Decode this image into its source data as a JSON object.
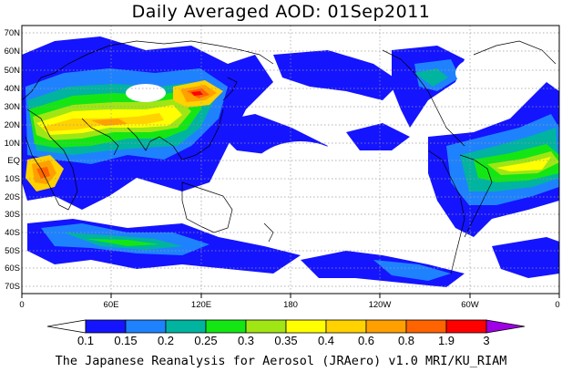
{
  "title": "Daily Averaged AOD: 01Sep2011",
  "credit": "The Japanese Reanalysis for Aerosol (JRAero) v1.0 MRI/KU_RIAM",
  "lat_labels": [
    "70N",
    "60N",
    "50N",
    "40N",
    "30N",
    "20N",
    "10N",
    "EQ",
    "10S",
    "20S",
    "30S",
    "40S",
    "50S",
    "60S",
    "70S"
  ],
  "lon_labels": [
    "0",
    "60E",
    "120E",
    "180",
    "120W",
    "60W",
    "0"
  ],
  "colorbar": {
    "labels": [
      "0.1",
      "0.15",
      "0.2",
      "0.25",
      "0.3",
      "0.35",
      "0.4",
      "0.6",
      "0.8",
      "1.9",
      "3"
    ],
    "colors": [
      "#ffffff",
      "#1414ff",
      "#1e82ff",
      "#00b4a0",
      "#14e614",
      "#a0e614",
      "#ffff00",
      "#ffd200",
      "#ffa000",
      "#ff6400",
      "#ff0000",
      "#a000e6"
    ]
  },
  "icons": {
    "map_field": "aod-field-map",
    "colorbar": "colorbar"
  }
}
